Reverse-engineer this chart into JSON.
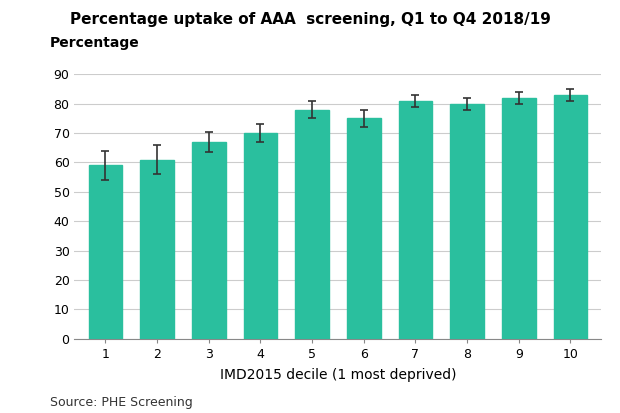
{
  "title": "Percentage uptake of AAA  screening, Q1 to Q4 2018/19",
  "ylabel": "Percentage",
  "xlabel": "IMD2015 decile (1 most deprived)",
  "source": "Source: PHE Screening",
  "categories": [
    1,
    2,
    3,
    4,
    5,
    6,
    7,
    8,
    9,
    10
  ],
  "values": [
    59,
    61,
    67,
    70,
    78,
    75,
    81,
    80,
    82,
    83
  ],
  "errors": [
    5,
    5,
    3.5,
    3,
    3,
    3,
    2,
    2,
    2,
    2
  ],
  "bar_color": "#2abf9e",
  "error_color": "#333333",
  "ylim": [
    0,
    90
  ],
  "yticks": [
    0,
    10,
    20,
    30,
    40,
    50,
    60,
    70,
    80,
    90
  ],
  "background_color": "#ffffff",
  "grid_color": "#cccccc",
  "title_fontsize": 11,
  "label_fontsize": 10,
  "tick_fontsize": 9,
  "source_fontsize": 9,
  "bar_width": 0.65
}
